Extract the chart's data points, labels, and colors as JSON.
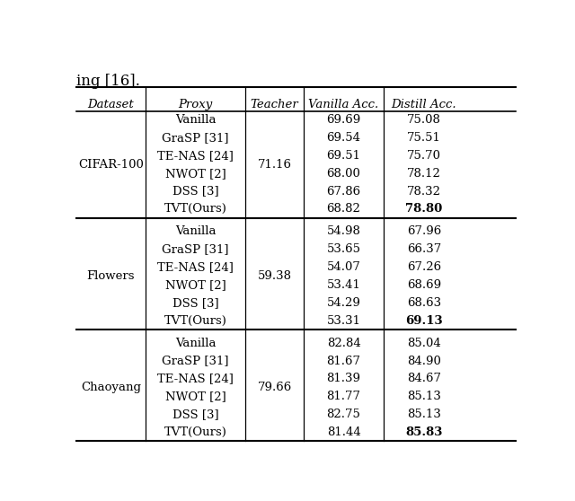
{
  "title_text": "ing [16].",
  "headers": [
    "Dataset",
    "Proxy",
    "Teacher",
    "Vanilla Acc.",
    "Distill Acc."
  ],
  "sections": [
    {
      "dataset": "CIFAR-100",
      "teacher": "71.16",
      "rows": [
        {
          "proxy": "Vanilla",
          "vanilla": "69.69",
          "distill": "75.08",
          "bold_distill": false
        },
        {
          "proxy": "GraSP [31]",
          "vanilla": "69.54",
          "distill": "75.51",
          "bold_distill": false
        },
        {
          "proxy": "TE-NAS [24]",
          "vanilla": "69.51",
          "distill": "75.70",
          "bold_distill": false
        },
        {
          "proxy": "NWOT [2]",
          "vanilla": "68.00",
          "distill": "78.12",
          "bold_distill": false
        },
        {
          "proxy": "DSS [3]",
          "vanilla": "67.86",
          "distill": "78.32",
          "bold_distill": false
        },
        {
          "proxy": "TVT(Ours)",
          "vanilla": "68.82",
          "distill": "78.80",
          "bold_distill": true
        }
      ]
    },
    {
      "dataset": "Flowers",
      "teacher": "59.38",
      "rows": [
        {
          "proxy": "Vanilla",
          "vanilla": "54.98",
          "distill": "67.96",
          "bold_distill": false
        },
        {
          "proxy": "GraSP [31]",
          "vanilla": "53.65",
          "distill": "66.37",
          "bold_distill": false
        },
        {
          "proxy": "TE-NAS [24]",
          "vanilla": "54.07",
          "distill": "67.26",
          "bold_distill": false
        },
        {
          "proxy": "NWOT [2]",
          "vanilla": "53.41",
          "distill": "68.69",
          "bold_distill": false
        },
        {
          "proxy": "DSS [3]",
          "vanilla": "54.29",
          "distill": "68.63",
          "bold_distill": false
        },
        {
          "proxy": "TVT(Ours)",
          "vanilla": "53.31",
          "distill": "69.13",
          "bold_distill": true
        }
      ]
    },
    {
      "dataset": "Chaoyang",
      "teacher": "79.66",
      "rows": [
        {
          "proxy": "Vanilla",
          "vanilla": "82.84",
          "distill": "85.04",
          "bold_distill": false
        },
        {
          "proxy": "GraSP [31]",
          "vanilla": "81.67",
          "distill": "84.90",
          "bold_distill": false
        },
        {
          "proxy": "TE-NAS [24]",
          "vanilla": "81.39",
          "distill": "84.67",
          "bold_distill": false
        },
        {
          "proxy": "NWOT [2]",
          "vanilla": "81.77",
          "distill": "85.13",
          "bold_distill": false
        },
        {
          "proxy": "DSS [3]",
          "vanilla": "82.75",
          "distill": "85.13",
          "bold_distill": false
        },
        {
          "proxy": "TVT(Ours)",
          "vanilla": "81.44",
          "distill": "85.83",
          "bold_distill": true
        }
      ]
    }
  ],
  "bg_color": "#ffffff",
  "text_color": "#000000",
  "font_size": 9.5,
  "header_font_size": 9.5,
  "title_font_size": 12
}
